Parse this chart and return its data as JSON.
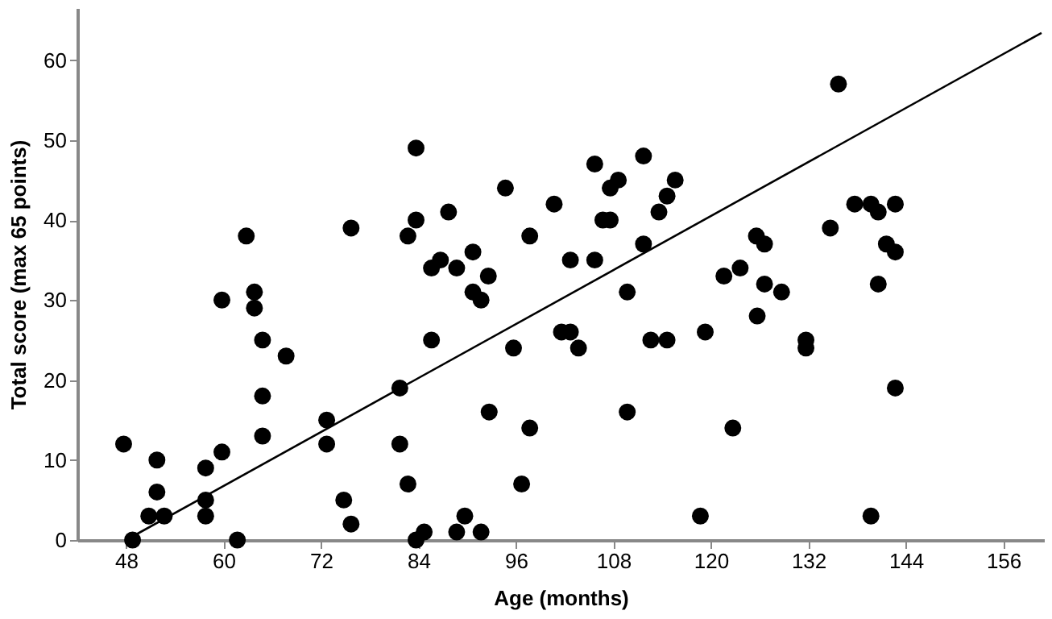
{
  "chart_data": {
    "type": "scatter",
    "xlabel": "Age (months)",
    "ylabel": "Total score (max 65 points)",
    "xlim": [
      42,
      161
    ],
    "ylim": [
      0,
      66.5
    ],
    "xticks": [
      48,
      60,
      72,
      84,
      96,
      108,
      120,
      132,
      144,
      156
    ],
    "yticks": [
      0,
      10,
      20,
      30,
      40,
      50,
      60
    ],
    "grid": false,
    "series": [
      {
        "color": "#000000",
        "marker": "circle",
        "x": [
          47.7,
          48.8,
          51.8,
          50.8,
          52.7,
          51.8,
          57.8,
          57.8,
          57.8,
          59.8,
          59.8,
          61.7,
          62.8,
          63.8,
          63.8,
          64.8,
          64.8,
          64.8,
          67.7,
          72.7,
          72.7,
          74.8,
          75.7,
          75.7,
          81.7,
          81.7,
          82.7,
          82.7,
          83.7,
          83.7,
          83.7,
          85.6,
          86.7,
          87.7,
          88.7,
          90.7,
          90.7,
          91.7,
          92.6,
          94.7,
          97.7,
          100.7,
          102.7,
          105.7,
          105.7,
          106.7,
          107.6,
          107.6,
          108.6,
          111.7,
          111.7,
          113.6,
          114.6,
          115.6,
          109.7,
          112.6,
          114.6,
          119.3,
          85.6,
          84.7,
          88.7,
          89.7,
          91.7,
          92.7,
          95.7,
          96.7,
          97.7,
          101.6,
          102.7,
          103.7,
          109.7,
          118.7,
          135.7,
          137.7,
          139.7,
          140.6,
          142.7,
          134.7,
          125.6,
          126.6,
          141.6,
          142.7,
          121.6,
          123.6,
          126.6,
          128.7,
          140.6,
          125.7,
          131.7,
          131.7,
          142.7,
          122.7,
          139.7
        ],
        "values": [
          12,
          0,
          10,
          3,
          3,
          6,
          9,
          5,
          3,
          11,
          30,
          0,
          38,
          31,
          29,
          25,
          18,
          13,
          23,
          15,
          12,
          5,
          2,
          39,
          19,
          12,
          7,
          38,
          40,
          49,
          0,
          34,
          35,
          41,
          34,
          36,
          31,
          30,
          33,
          44,
          38,
          42,
          35,
          35,
          47,
          40,
          40,
          44,
          45,
          48,
          37,
          41,
          43,
          45,
          31,
          25,
          25,
          26,
          25,
          1,
          1,
          3,
          1,
          16,
          24,
          7,
          14,
          26,
          26,
          24,
          16,
          3,
          57,
          42,
          42,
          41,
          42,
          39,
          38,
          37,
          37,
          36,
          33,
          34,
          32,
          31,
          32,
          28,
          25,
          24,
          19,
          14,
          3
        ]
      },
      {
        "type": "line",
        "color": "#000000",
        "marker": "none",
        "x": [
          48,
          160.7
        ],
        "values": [
          0,
          63.4
        ]
      }
    ]
  }
}
